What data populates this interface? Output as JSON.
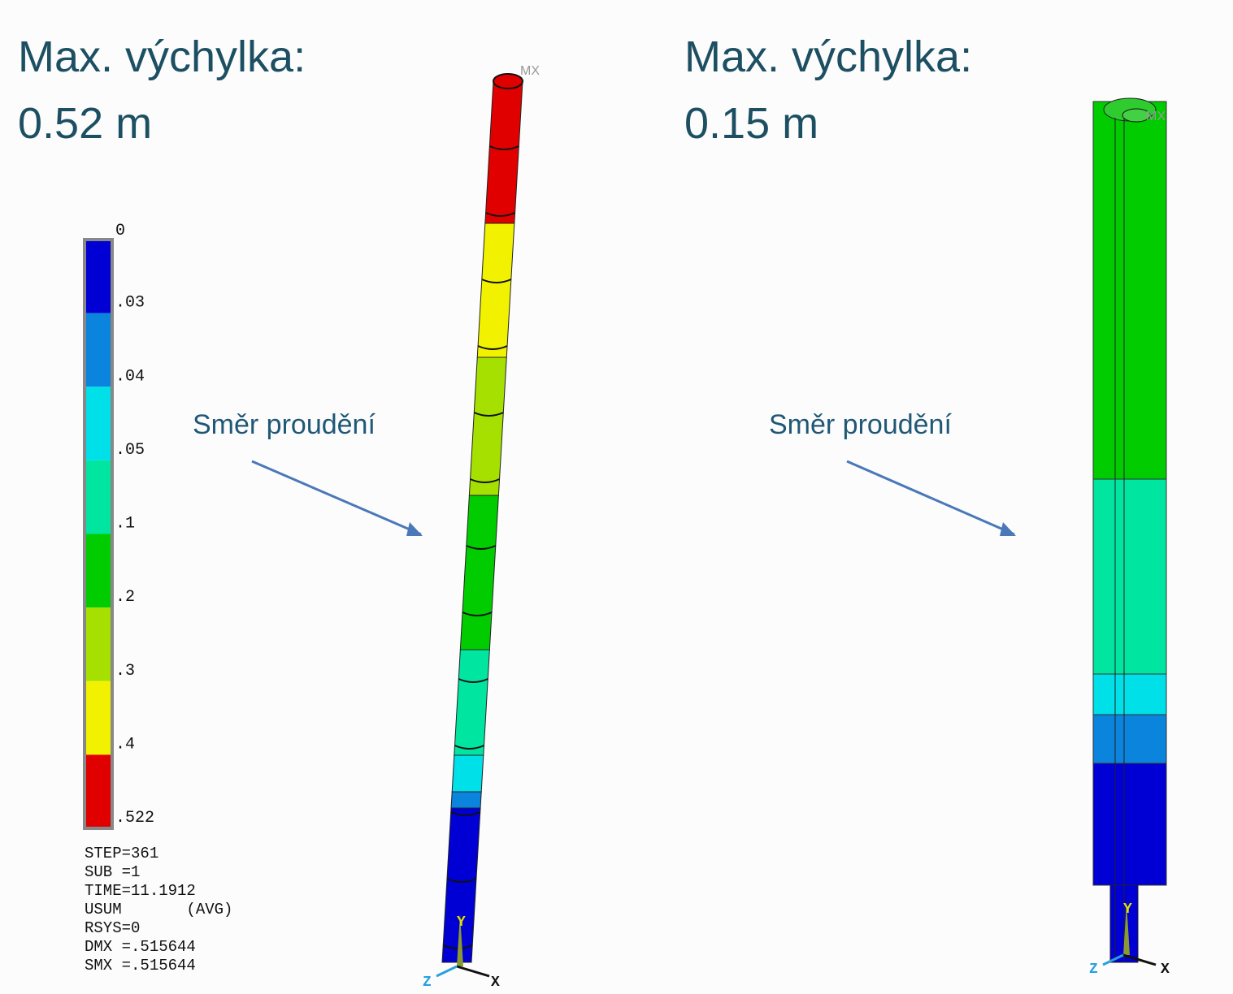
{
  "panels": [
    {
      "title": "Max. výchylka:",
      "value": "0.52 m",
      "annotation": "Směr proudění",
      "max_marker": "MX",
      "axes": [
        "Y",
        "X",
        "Z"
      ]
    },
    {
      "title": "Max. výchylka:",
      "value": "0.15 m",
      "annotation": "Směr proudění",
      "max_marker": "MX",
      "axes": [
        "Y",
        "X",
        "Z"
      ]
    }
  ],
  "legend": {
    "labels": [
      "0",
      ".03",
      ".04",
      ".05",
      ".1",
      ".2",
      ".3",
      ".4",
      ".522"
    ],
    "info": [
      "STEP=361",
      "SUB =1",
      "TIME=11.1912",
      "USUM       (AVG)",
      "RSYS=0",
      "DMX =.515644",
      "SMX =.515644"
    ]
  }
}
